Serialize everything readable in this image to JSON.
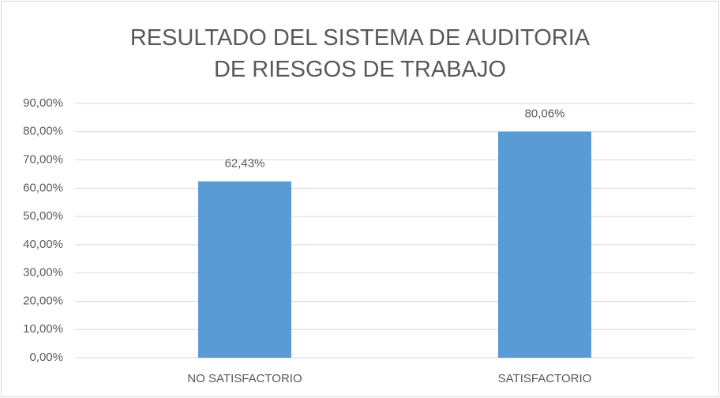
{
  "chart_data": {
    "type": "bar",
    "title": "RESULTADO DEL SISTEMA DE AUDITORIA DE RIESGOS DE TRABAJO",
    "categories": [
      "NO SATISFACTORIO",
      "SATISFACTORIO"
    ],
    "values": [
      62.43,
      80.06
    ],
    "value_labels": [
      "62,43%",
      "80,06%"
    ],
    "color": "#5b9bd5",
    "ylim": [
      0,
      90
    ],
    "yticks": [
      {
        "value": 0,
        "label": "0,00%"
      },
      {
        "value": 10,
        "label": "10,00%"
      },
      {
        "value": 20,
        "label": "20,00%"
      },
      {
        "value": 30,
        "label": "30,00%"
      },
      {
        "value": 40,
        "label": "40,00%"
      },
      {
        "value": 50,
        "label": "50,00%"
      },
      {
        "value": 60,
        "label": "60,00%"
      },
      {
        "value": 70,
        "label": "70,00%"
      },
      {
        "value": 80,
        "label": "80,00%"
      },
      {
        "value": 90,
        "label": "90,00%"
      }
    ],
    "grid": true
  }
}
